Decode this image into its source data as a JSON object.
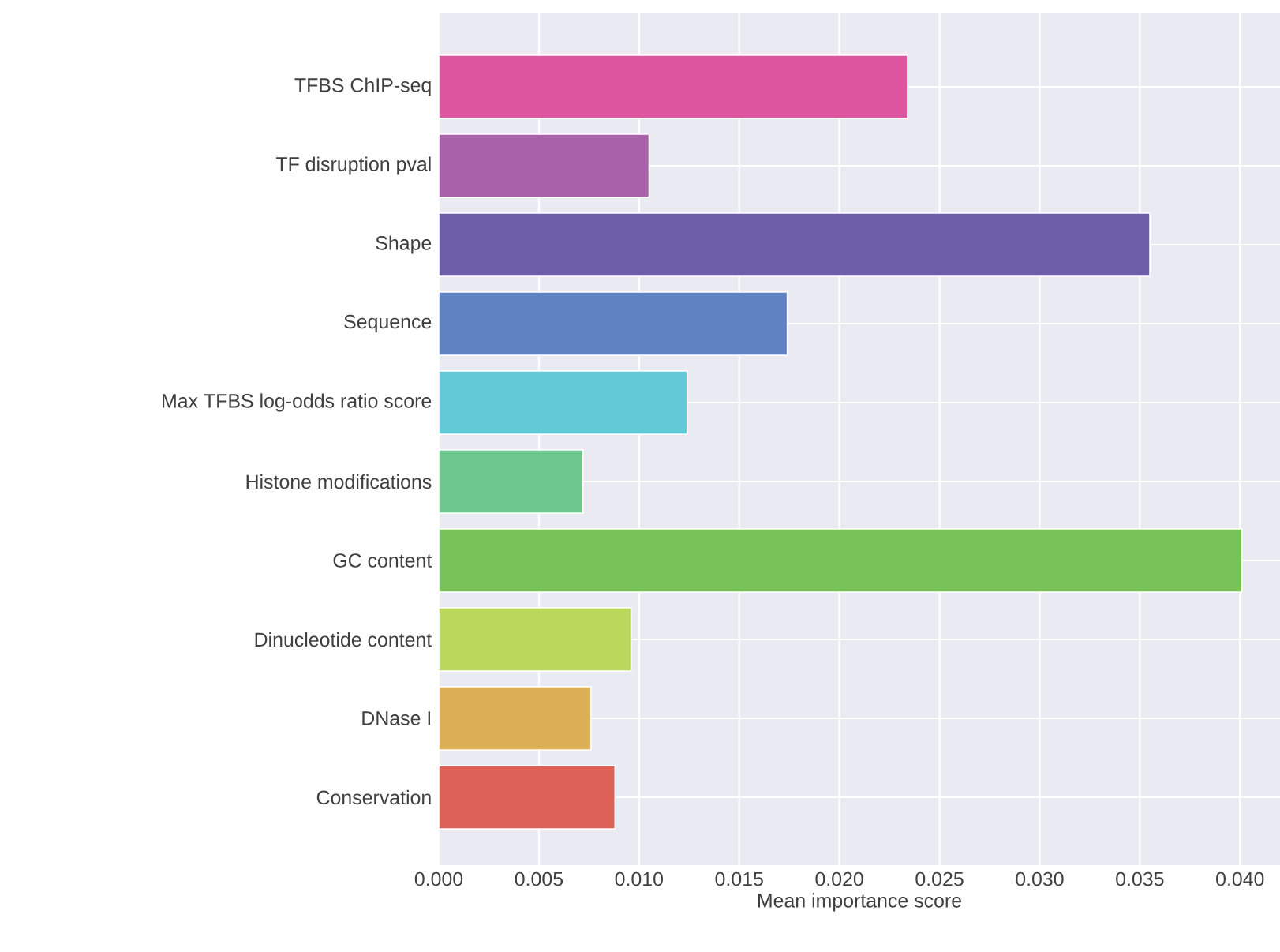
{
  "chart_data": {
    "type": "bar",
    "orientation": "horizontal",
    "xlabel": "Mean importance score",
    "categories": [
      "TFBS ChIP-seq",
      "TF disruption pval",
      "Shape",
      "Sequence",
      "Max TFBS log-odds ratio score",
      "Histone modifications",
      "GC content",
      "Dinucleotide content",
      "DNase I",
      "Conservation"
    ],
    "values": [
      0.0234,
      0.0105,
      0.0355,
      0.0174,
      0.0124,
      0.0072,
      0.0401,
      0.0096,
      0.0076,
      0.0088
    ],
    "colors": [
      "#dd559f",
      "#a962a9",
      "#6e5ea8",
      "#5f82c3",
      "#62c9d6",
      "#6cc68e",
      "#78c257",
      "#bad85b",
      "#ddaf55",
      "#de6158"
    ],
    "xlim": [
      0,
      0.042
    ],
    "xticks": [
      {
        "value": 0,
        "label": "0.000"
      },
      0.005,
      {
        "value": 0.01,
        "label": "0.010"
      },
      0.015,
      {
        "value": 0.02,
        "label": "0.020"
      },
      0.025,
      {
        "value": 0.03,
        "label": "0.030"
      },
      0.035,
      {
        "value": 0.04,
        "label": "0.040"
      }
    ],
    "grid": true
  }
}
